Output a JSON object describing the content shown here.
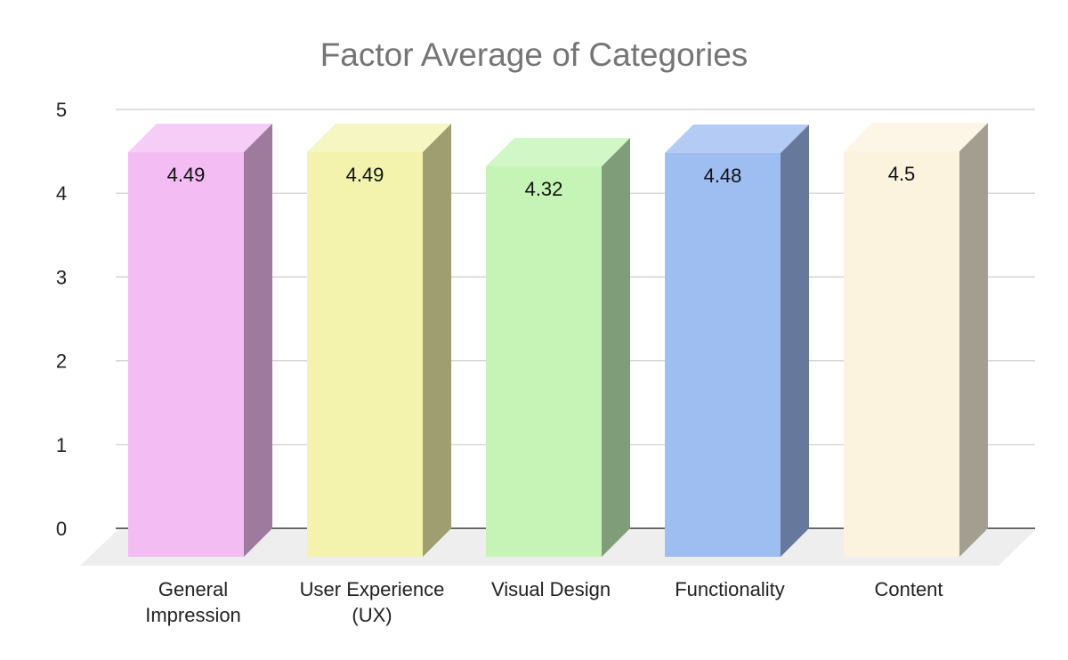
{
  "chart_data": {
    "type": "bar",
    "title": "Factor Average of Categories",
    "categories": [
      "General Impression",
      "User Experience (UX)",
      "Visual Design",
      "Functionality",
      "Content"
    ],
    "category_lines": [
      [
        "General",
        "Impression"
      ],
      [
        "User Experience",
        "(UX)"
      ],
      [
        "Visual Design"
      ],
      [
        "Functionality"
      ],
      [
        "Content"
      ]
    ],
    "values": [
      4.49,
      4.49,
      4.32,
      4.48,
      4.5
    ],
    "data_labels": [
      "4.49",
      "4.49",
      "4.32",
      "4.48",
      "4.5"
    ],
    "y_ticks": [
      "0",
      "1",
      "2",
      "3",
      "4",
      "5"
    ],
    "ylim": [
      0,
      5
    ],
    "grid": true,
    "legend": "none",
    "style": "3d",
    "colors": [
      {
        "front": "#f3bdf3",
        "side": "#9e7a9e",
        "top": "#f6cdf6"
      },
      {
        "front": "#f3f3ad",
        "side": "#9e9e70",
        "top": "#f6f6c2"
      },
      {
        "front": "#c5f4b6",
        "side": "#7f9d78",
        "top": "#d2f7c6"
      },
      {
        "front": "#9ebdf1",
        "side": "#66799c",
        "top": "#b3cbf5"
      },
      {
        "front": "#fcf3df",
        "side": "#a39e90",
        "top": "#fdf6e6"
      }
    ]
  }
}
